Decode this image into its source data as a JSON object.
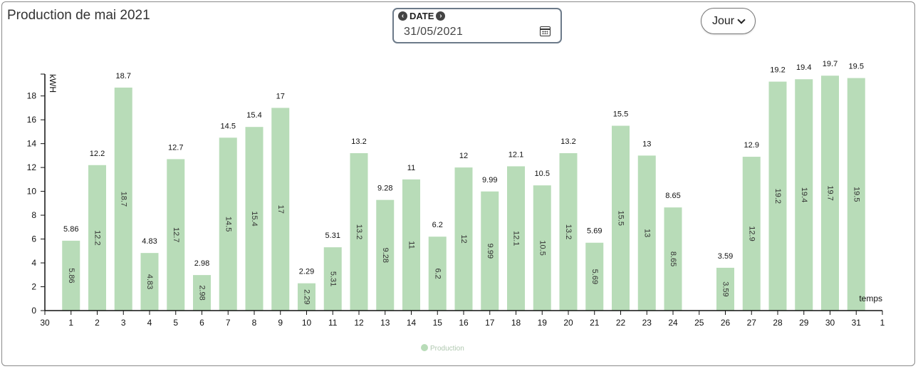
{
  "header": {
    "title": "Production de mai 2021",
    "date_label": "DATE",
    "date_value": "31/05/2021",
    "prev_icon": "arrow-left-circle-icon",
    "next_icon": "arrow-right-circle-icon",
    "calendar_icon": "calendar-icon",
    "period_label": "Jour",
    "period_icon": "chevron-down-icon"
  },
  "chart_data": {
    "type": "bar",
    "title": "",
    "xlabel": "temps",
    "ylabel": "kWH",
    "ylim": [
      0,
      19
    ],
    "yticks": [
      0,
      2,
      4,
      6,
      8,
      10,
      12,
      14,
      16,
      18
    ],
    "xticks": [
      "30",
      "1",
      "2",
      "3",
      "4",
      "5",
      "6",
      "7",
      "8",
      "9",
      "10",
      "11",
      "12",
      "13",
      "14",
      "15",
      "16",
      "17",
      "18",
      "19",
      "20",
      "21",
      "22",
      "23",
      "24",
      "25",
      "26",
      "27",
      "28",
      "29",
      "30",
      "31",
      "1"
    ],
    "categories": [
      "1",
      "2",
      "3",
      "4",
      "5",
      "6",
      "7",
      "8",
      "9",
      "10",
      "11",
      "12",
      "13",
      "14",
      "15",
      "16",
      "17",
      "18",
      "19",
      "20",
      "21",
      "22",
      "23",
      "24",
      "25",
      "26",
      "27",
      "28",
      "29",
      "30",
      "31"
    ],
    "series": [
      {
        "name": "Production",
        "color": "#b8dcb8",
        "values": [
          5.86,
          12.2,
          18.7,
          4.83,
          12.7,
          2.98,
          14.5,
          15.4,
          17,
          2.29,
          5.31,
          13.2,
          9.28,
          11,
          6.2,
          12,
          9.99,
          12.1,
          10.5,
          13.2,
          5.69,
          15.5,
          13,
          8.65,
          null,
          3.59,
          12.9,
          19.2,
          19.4,
          19.7,
          19.5
        ]
      }
    ],
    "legend": "bottom-center",
    "grid": false
  }
}
